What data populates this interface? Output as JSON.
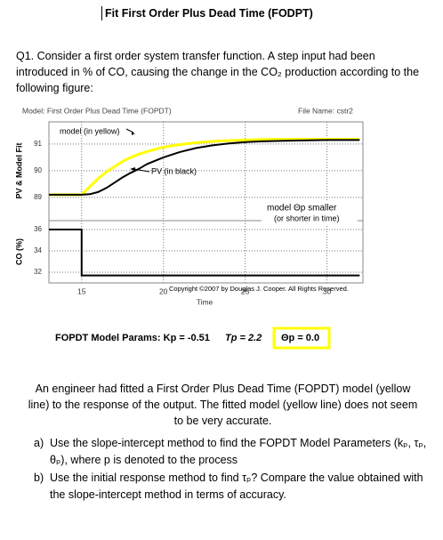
{
  "header": {
    "title": "Fit First Order Plus Dead Time (FODPT)"
  },
  "question": {
    "intro": "Q1. Consider a first order system transfer function. A step input had been introduced in % of CO, causing the change in the CO₂ production according to the following figure:"
  },
  "figure": {
    "model_label": "Model: First Order Plus Dead Time (FOPDT)",
    "file_label": "File Name: cstr2",
    "pv_axis_label": "PV & Model Fit",
    "co_axis_label": "CO (%)",
    "x_axis_label": "Time",
    "annotations": [
      "model (in yellow)",
      "PV (in black)",
      "model Θp smaller",
      "(or shorter in time)",
      "Copyright ©2007 by Douglas J. Cooper. All Rights Reserved."
    ],
    "params": [
      "FOPDT Model Params:  Kp = -0.51",
      "Tp = 2.2",
      "Θp = 0.0"
    ],
    "xlim": [
      13,
      32.2
    ],
    "xticks": [
      15,
      20,
      25,
      30
    ],
    "pv_ylim": [
      88.13,
      91.83
    ],
    "pv_yticks": [
      89,
      90,
      91
    ],
    "co_ylim": [
      31,
      36.83
    ],
    "co_yticks": [
      32,
      34,
      36
    ],
    "grid": true,
    "series": [
      {
        "name": "model (in yellow)",
        "color": "#ffff00",
        "axis": "pv",
        "x": [
          13,
          14,
          15,
          15.5,
          16,
          16.5,
          17,
          17.5,
          18,
          18.5,
          19,
          20,
          21,
          22,
          23,
          24,
          25,
          26,
          28,
          30,
          32
        ],
        "values": [
          89.1,
          89.1,
          89.1,
          89.4,
          89.7,
          89.95,
          90.15,
          90.35,
          90.5,
          90.62,
          90.72,
          90.88,
          90.98,
          91.05,
          91.1,
          91.13,
          91.15,
          91.17,
          91.18,
          91.18,
          91.18
        ]
      },
      {
        "name": "PV (in black)",
        "color": "#000000",
        "axis": "pv",
        "x": [
          13,
          14,
          15,
          15.5,
          16,
          16.5,
          17,
          17.5,
          18,
          18.5,
          19,
          20,
          21,
          22,
          23,
          24,
          25,
          26,
          28,
          30,
          32
        ],
        "values": [
          89.1,
          89.1,
          89.1,
          89.12,
          89.2,
          89.35,
          89.55,
          89.75,
          89.92,
          90.07,
          90.25,
          90.5,
          90.7,
          90.85,
          90.95,
          91.02,
          91.07,
          91.1,
          91.13,
          91.15,
          91.15
        ]
      },
      {
        "name": "CO (%)",
        "color": "#000000",
        "axis": "co",
        "x": [
          13,
          15,
          15,
          32
        ],
        "values": [
          36,
          36,
          31.7,
          31.7
        ]
      }
    ]
  },
  "body": {
    "paragraph": "An engineer had fitted a First Order Plus Dead Time (FOPDT) model (yellow line) to the response of the output. The fitted model (yellow line) does not seem to be very accurate.",
    "items": [
      {
        "marker": "a)",
        "text": "Use the slope-intercept method to find the FOPDT Model Parameters (kₚ, τₚ, θₚ), where p is denoted to the process"
      },
      {
        "marker": "b)",
        "text": "Use the initial response method to find τₚ? Compare the value obtained with the slope-intercept method in terms of accuracy."
      }
    ]
  }
}
